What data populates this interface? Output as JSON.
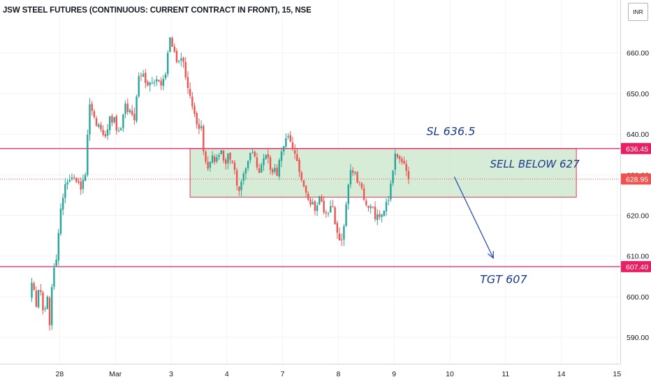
{
  "header": {
    "title": "JSW STEEL FUTURES (CONTINUOUS: CURRENT CONTRACT IN FRONT), 15, NSE",
    "currency_label": "INR"
  },
  "colors": {
    "up": "#26a69a",
    "down": "#ef5350",
    "level_line": "#e91e63",
    "zone_fill": "#c8e6c9",
    "zone_border": "#e53950",
    "annotation": "#1c3b8f",
    "last_price_tag": "#ef5350"
  },
  "chart_data": {
    "type": "candlestick",
    "title": "JSW STEEL FUTURES (CONTINUOUS: CURRENT CONTRACT IN FRONT), 15, NSE",
    "interval": "15",
    "exchange": "NSE",
    "ylim": [
      583.5,
      673
    ],
    "y_ticks": [
      "590.00",
      "600.00",
      "610.00",
      "620.00",
      "630.00",
      "640.00",
      "650.00",
      "660.00"
    ],
    "y_tick_values": [
      590,
      600,
      610,
      620,
      630,
      640,
      650,
      660
    ],
    "x_ticks": [
      {
        "label": "28",
        "session": 0.5
      },
      {
        "label": "Mar",
        "session": 1.5
      },
      {
        "label": "3",
        "session": 2.5
      },
      {
        "label": "4",
        "session": 3.5
      },
      {
        "label": "7",
        "session": 4.5
      },
      {
        "label": "8",
        "session": 5.5
      },
      {
        "label": "9",
        "session": 6.5
      },
      {
        "label": "10",
        "session": 7.5
      },
      {
        "label": "11",
        "session": 8.5
      },
      {
        "label": "14",
        "session": 9.5
      },
      {
        "label": "15",
        "session": 10.5
      }
    ],
    "price_path": [
      [
        0,
        600
      ],
      [
        0.06,
        604
      ],
      [
        0.12,
        598
      ],
      [
        0.18,
        602
      ],
      [
        0.26,
        596
      ],
      [
        0.32,
        599
      ],
      [
        0.36,
        594
      ],
      [
        0.42,
        605
      ],
      [
        0.48,
        610
      ],
      [
        0.55,
        621
      ],
      [
        0.62,
        626
      ],
      [
        0.7,
        630
      ],
      [
        0.8,
        629
      ],
      [
        0.9,
        627
      ],
      [
        0.98,
        628
      ],
      [
        1.02,
        634
      ],
      [
        1.06,
        645
      ],
      [
        1.1,
        648
      ],
      [
        1.18,
        643
      ],
      [
        1.26,
        641
      ],
      [
        1.34,
        639
      ],
      [
        1.42,
        643
      ],
      [
        1.5,
        644
      ],
      [
        1.58,
        641
      ],
      [
        1.66,
        643
      ],
      [
        1.72,
        647
      ],
      [
        1.8,
        646
      ],
      [
        1.88,
        643
      ],
      [
        1.95,
        655
      ],
      [
        2.05,
        654
      ],
      [
        2.15,
        652
      ],
      [
        2.25,
        654
      ],
      [
        2.35,
        653
      ],
      [
        2.42,
        653
      ],
      [
        2.48,
        660
      ],
      [
        2.53,
        664
      ],
      [
        2.58,
        661
      ],
      [
        2.66,
        657
      ],
      [
        2.74,
        658
      ],
      [
        2.82,
        654
      ],
      [
        2.88,
        649
      ],
      [
        2.95,
        645
      ],
      [
        3.0,
        643
      ],
      [
        3.08,
        641
      ],
      [
        3.12,
        636
      ],
      [
        3.18,
        631
      ],
      [
        3.26,
        634
      ],
      [
        3.34,
        633
      ],
      [
        3.42,
        636
      ],
      [
        3.5,
        632
      ],
      [
        3.58,
        635
      ],
      [
        3.64,
        633
      ],
      [
        3.7,
        630
      ],
      [
        3.75,
        626
      ],
      [
        3.8,
        629
      ],
      [
        3.86,
        632
      ],
      [
        3.92,
        634
      ],
      [
        4.0,
        635
      ],
      [
        4.06,
        633
      ],
      [
        4.12,
        631
      ],
      [
        4.18,
        634
      ],
      [
        4.26,
        635
      ],
      [
        4.32,
        632
      ],
      [
        4.38,
        631
      ],
      [
        4.45,
        630
      ],
      [
        4.5,
        635
      ],
      [
        4.55,
        637
      ],
      [
        4.6,
        639
      ],
      [
        4.65,
        640
      ],
      [
        4.7,
        638
      ],
      [
        4.74,
        636
      ],
      [
        4.8,
        633
      ],
      [
        4.88,
        628
      ],
      [
        4.95,
        625
      ],
      [
        5.02,
        622
      ],
      [
        5.08,
        623
      ],
      [
        5.14,
        621
      ],
      [
        5.2,
        624
      ],
      [
        5.26,
        622
      ],
      [
        5.32,
        620
      ],
      [
        5.38,
        622
      ],
      [
        5.44,
        621
      ],
      [
        5.5,
        617
      ],
      [
        5.55,
        615
      ],
      [
        5.6,
        613
      ],
      [
        5.63,
        617
      ],
      [
        5.66,
        620
      ],
      [
        5.7,
        626
      ],
      [
        5.75,
        630
      ],
      [
        5.8,
        631
      ],
      [
        5.85,
        630
      ],
      [
        5.9,
        628
      ],
      [
        5.95,
        628
      ],
      [
        6.0,
        624
      ],
      [
        6.06,
        623
      ],
      [
        6.12,
        622
      ],
      [
        6.2,
        620
      ],
      [
        6.26,
        619
      ],
      [
        6.32,
        620
      ],
      [
        6.38,
        621
      ],
      [
        6.42,
        624
      ],
      [
        6.46,
        625
      ],
      [
        6.5,
        630
      ],
      [
        6.54,
        634
      ],
      [
        6.58,
        636
      ],
      [
        6.62,
        633
      ],
      [
        6.66,
        633
      ],
      [
        6.7,
        634
      ],
      [
        6.74,
        631
      ],
      [
        6.78,
        629
      ]
    ],
    "last_price": "628.95",
    "last_price_value": 628.95,
    "horizontal_lines": [
      {
        "value": 636.45,
        "label": "636.45"
      },
      {
        "value": 607.4,
        "label": "607.40"
      }
    ],
    "rectangle": {
      "top": 636.45,
      "bottom": 624.5,
      "session_from": 2.84,
      "session_to": 9.77
    },
    "arrow": {
      "from_session": 7.58,
      "from_price": 629.5,
      "to_session": 8.28,
      "to_price": 609.5
    },
    "annotations": [
      {
        "text": "SL 636.5",
        "session": 7.08,
        "price": 639.8,
        "size": 16
      },
      {
        "text": "SELL BELOW 627",
        "session": 8.22,
        "price": 631.8,
        "size": 15
      },
      {
        "text": "TGT 607",
        "session": 8.04,
        "price": 603.3,
        "size": 16
      }
    ]
  }
}
